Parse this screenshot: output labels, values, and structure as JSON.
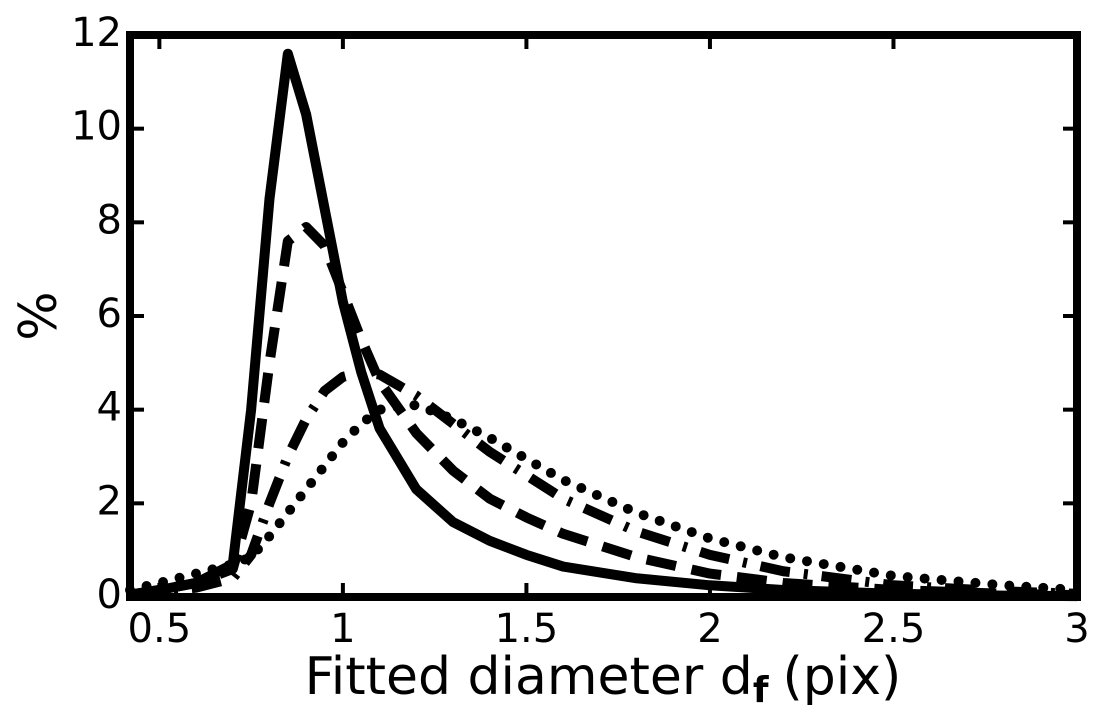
{
  "chart_data": {
    "type": "line",
    "xlabel": [
      "Fitted diameter d",
      "f",
      "(pix)"
    ],
    "ylabel": "%",
    "x": [
      0.42,
      0.5,
      0.6,
      0.7,
      0.75,
      0.8,
      0.85,
      0.9,
      0.95,
      1.0,
      1.05,
      1.1,
      1.2,
      1.3,
      1.4,
      1.5,
      1.6,
      1.8,
      2.0,
      2.2,
      2.5,
      2.8,
      3.0
    ],
    "series": [
      {
        "color": "#000000",
        "dash": "solid",
        "values": [
          0.05,
          0.15,
          0.3,
          0.7,
          4,
          8.5,
          11.6,
          10.3,
          8.3,
          6.3,
          4.8,
          3.6,
          2.3,
          1.6,
          1.2,
          0.9,
          0.65,
          0.4,
          0.25,
          0.15,
          0.07,
          0.03,
          0.02
        ]
      },
      {
        "color": "#000000",
        "dash": "dashed",
        "values": [
          0.05,
          0.15,
          0.3,
          0.6,
          2,
          5,
          7.6,
          7.9,
          7.5,
          6.5,
          5.5,
          4.6,
          3.5,
          2.7,
          2.1,
          1.7,
          1.35,
          0.85,
          0.5,
          0.3,
          0.15,
          0.07,
          0.04
        ]
      },
      {
        "color": "#000000",
        "dash": "dashdot",
        "values": [
          0.05,
          0.1,
          0.2,
          0.4,
          0.9,
          2,
          3,
          3.8,
          4.4,
          4.7,
          4.8,
          4.75,
          4.3,
          3.7,
          3.1,
          2.6,
          2.1,
          1.4,
          0.9,
          0.55,
          0.25,
          0.12,
          0.07
        ]
      },
      {
        "color": "#000000",
        "dash": "dotted",
        "values": [
          0.15,
          0.3,
          0.5,
          0.7,
          0.85,
          1.3,
          1.8,
          2.3,
          2.8,
          3.3,
          3.7,
          4.0,
          4.1,
          3.8,
          3.4,
          2.95,
          2.5,
          1.8,
          1.25,
          0.85,
          0.45,
          0.25,
          0.15
        ]
      }
    ],
    "xlim": [
      0.42,
      3
    ],
    "xticks": [
      0.5,
      1,
      1.5,
      2,
      2.5,
      3
    ],
    "ylim": [
      0,
      12
    ],
    "yticks": [
      0,
      2,
      4,
      6,
      8,
      10,
      12
    ]
  }
}
